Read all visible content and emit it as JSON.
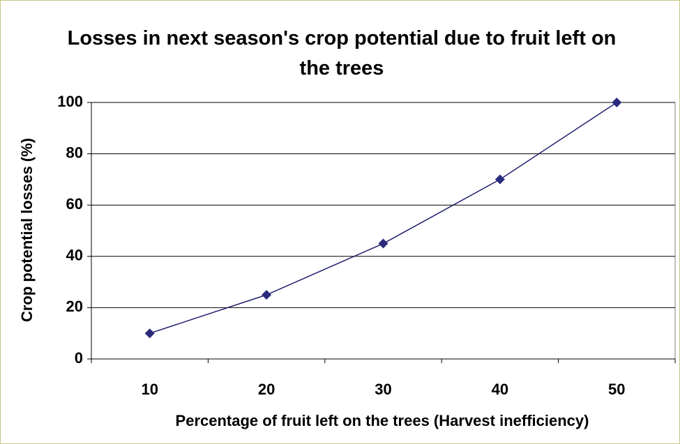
{
  "chart_data": {
    "type": "line",
    "title": "Losses in next season's crop potential due to fruit left on the trees",
    "x_label": "Percentage of fruit left on the trees (Harvest inefficiency)",
    "y_label": "Crop potential losses (%)",
    "categories": [
      "10",
      "20",
      "30",
      "40",
      "50"
    ],
    "values": [
      10,
      25,
      45,
      70,
      100
    ],
    "color": "#1f1f6e",
    "marker_color": "#2b2b7e",
    "ylim": [
      0,
      100
    ],
    "yticks": [
      0,
      20,
      40,
      60,
      80,
      100
    ],
    "grid": true
  }
}
